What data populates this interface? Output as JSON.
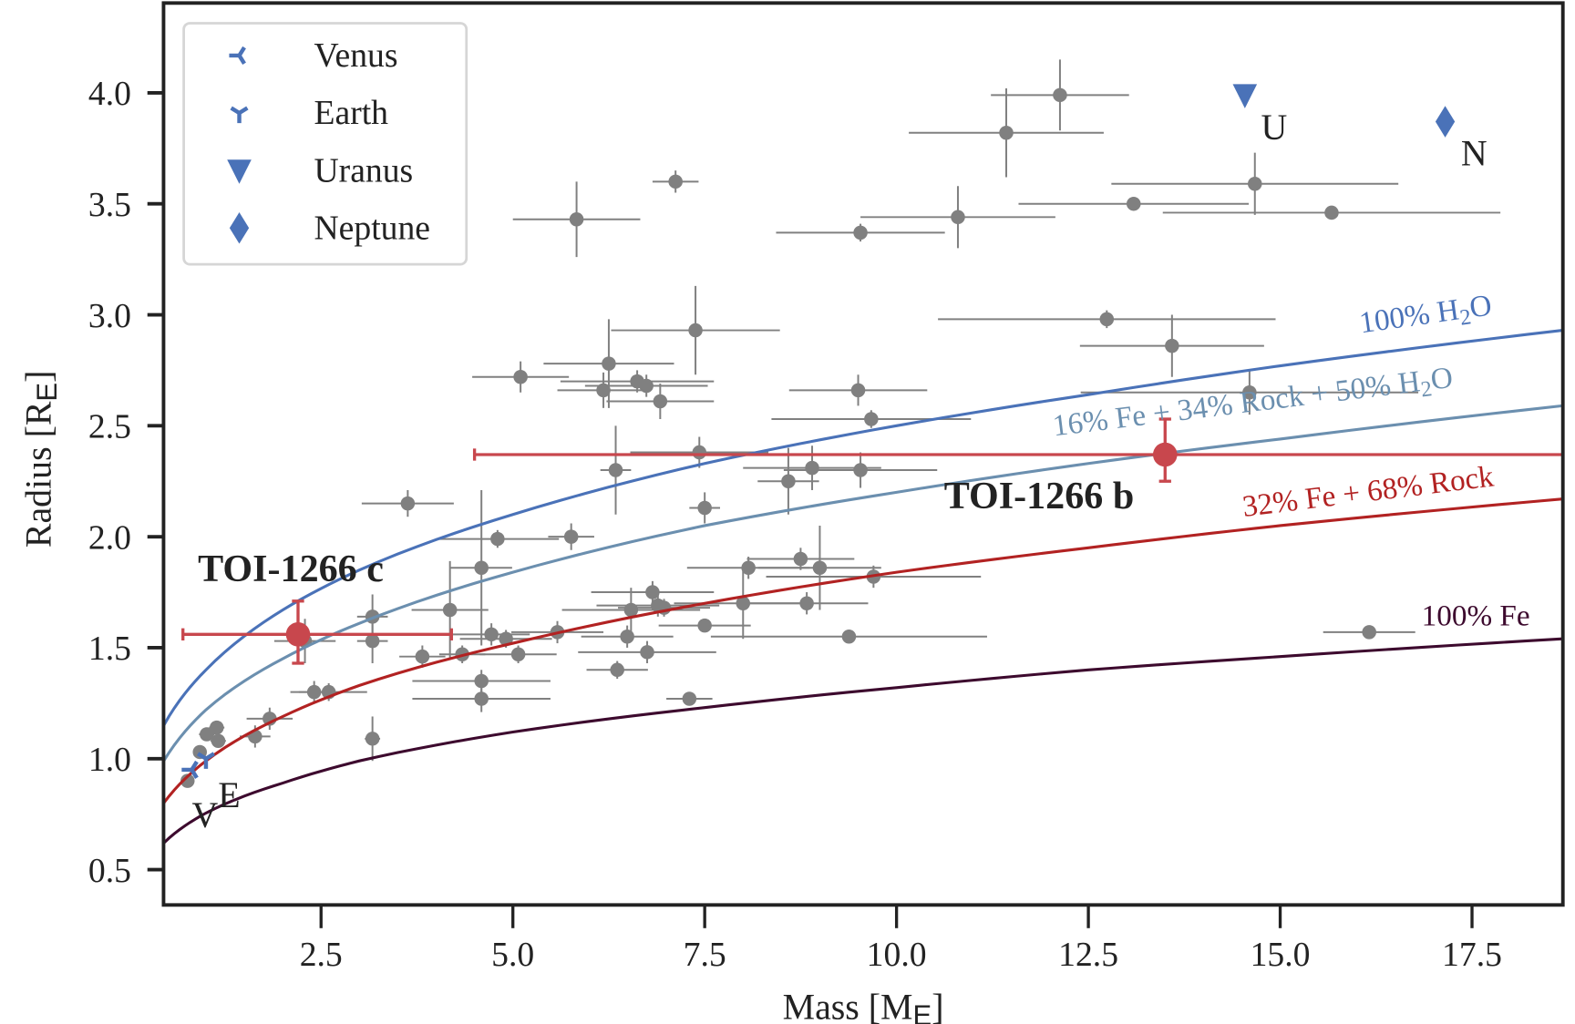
{
  "chart_data": {
    "type": "scatter",
    "title": "",
    "xlabel": "Mass [M",
    "xlabel_sub": "E",
    "xlabel_end": "]",
    "ylabel": "Radius [R",
    "ylabel_sub": "E",
    "ylabel_end": "]",
    "xlim": [
      0.45,
      18.68
    ],
    "ylim": [
      0.34,
      4.4
    ],
    "xticks": [
      "2.5",
      "5.0",
      "7.5",
      "10.0",
      "12.5",
      "15.0",
      "17.5"
    ],
    "yticks": [
      "0.5",
      "1.0",
      "1.5",
      "2.0",
      "2.5",
      "3.0",
      "3.5",
      "4.0"
    ],
    "grid": false,
    "legend_placement": "top-left",
    "legend": [
      {
        "label": "Venus",
        "marker": "tri-left"
      },
      {
        "label": "Earth",
        "marker": "tri-down"
      },
      {
        "label": "Uranus",
        "marker": "triangle-down"
      },
      {
        "label": "Neptune",
        "marker": "diamond"
      }
    ],
    "colors": {
      "planets": "#4a72b8",
      "exoplanets": "#808080",
      "toi": "#c8474d",
      "h2o": "#4a72b8",
      "mix": "#6b8faf",
      "rock": "#b22222",
      "fe": "#3d0a2e"
    },
    "solar_system": [
      {
        "name": "Venus",
        "label": "V",
        "mass": 0.815,
        "radius": 0.95,
        "marker": "tri-left"
      },
      {
        "name": "Earth",
        "label": "E",
        "mass": 1.0,
        "radius": 1.0,
        "marker": "tri-down"
      },
      {
        "name": "Uranus",
        "label": "U",
        "mass": 14.54,
        "radius": 3.99,
        "marker": "triangle-down"
      },
      {
        "name": "Neptune",
        "label": "N",
        "mass": 17.15,
        "radius": 3.87,
        "marker": "diamond"
      }
    ],
    "toi": [
      {
        "label": "TOI-1266 b",
        "mass": 13.5,
        "mass_err": [
          9.0,
          11.0
        ],
        "radius": 2.37,
        "radius_err": [
          0.12,
          0.16
        ]
      },
      {
        "label": "TOI-1266 c",
        "mass": 2.2,
        "mass_err": [
          1.5,
          2.0
        ],
        "radius": 1.56,
        "radius_err": [
          0.13,
          0.15
        ]
      }
    ],
    "curves": [
      {
        "label": "100% H",
        "sub": "2",
        "tail": "O",
        "color": "#4a72b8",
        "x": [
          0.45,
          1,
          2,
          3,
          5,
          7.5,
          10,
          12.5,
          15,
          18.68
        ],
        "y": [
          1.15,
          1.4,
          1.67,
          1.85,
          2.1,
          2.33,
          2.5,
          2.64,
          2.77,
          2.93
        ]
      },
      {
        "label": "16% Fe + 34% Rock + 50% H",
        "sub": "2",
        "tail": "O",
        "color": "#6b8faf",
        "x": [
          0.45,
          1,
          2,
          3,
          5,
          7.5,
          10,
          12.5,
          15,
          18.68
        ],
        "y": [
          0.99,
          1.22,
          1.45,
          1.61,
          1.84,
          2.05,
          2.2,
          2.33,
          2.44,
          2.59
        ]
      },
      {
        "label": "32% Fe + 68% Rock",
        "sub": "",
        "tail": "",
        "color": "#b22222",
        "x": [
          0.45,
          1,
          2,
          3,
          5,
          7.5,
          10,
          12.5,
          15,
          18.68
        ],
        "y": [
          0.8,
          0.99,
          1.19,
          1.33,
          1.52,
          1.7,
          1.84,
          1.95,
          2.05,
          2.17
        ]
      },
      {
        "label": "100% Fe",
        "sub": "",
        "tail": "",
        "color": "#3d0a2e",
        "x": [
          0.45,
          1,
          2,
          3,
          5,
          7.5,
          10,
          12.5,
          15,
          18.68
        ],
        "y": [
          0.62,
          0.755,
          0.89,
          0.99,
          1.12,
          1.23,
          1.32,
          1.4,
          1.46,
          1.54
        ]
      }
    ],
    "exoplanets": [
      [
        12.13,
        3.99,
        0.9,
        0.16
      ],
      [
        11.43,
        3.82,
        1.27,
        0.2
      ],
      [
        7.12,
        3.6,
        0.3,
        0.05
      ],
      [
        5.83,
        3.43,
        0.83,
        0.17
      ],
      [
        9.53,
        3.37,
        1.1,
        0.04
      ],
      [
        10.8,
        3.44,
        1.27,
        0.14
      ],
      [
        13.09,
        3.5,
        1.5,
        0.02
      ],
      [
        14.67,
        3.59,
        1.87,
        0.14
      ],
      [
        15.67,
        3.46,
        2.2,
        0.03
      ],
      [
        7.38,
        2.93,
        1.1,
        0.2
      ],
      [
        12.74,
        2.98,
        2.2,
        0.04
      ],
      [
        13.59,
        2.86,
        1.2,
        0.14
      ],
      [
        5.1,
        2.72,
        0.63,
        0.07
      ],
      [
        6.25,
        2.78,
        0.85,
        0.2
      ],
      [
        6.18,
        2.66,
        0.6,
        0.08
      ],
      [
        6.62,
        2.7,
        1.0,
        0.05
      ],
      [
        6.74,
        2.68,
        0.8,
        0.05
      ],
      [
        6.92,
        2.61,
        0.7,
        0.08
      ],
      [
        9.5,
        2.66,
        0.9,
        0.07
      ],
      [
        14.6,
        2.65,
        2.2,
        0.1
      ],
      [
        9.67,
        2.53,
        1.3,
        0.04
      ],
      [
        6.34,
        2.3,
        0.2,
        0.2
      ],
      [
        7.43,
        2.38,
        0.9,
        0.07
      ],
      [
        7.5,
        2.13,
        0.2,
        0.07
      ],
      [
        8.59,
        2.25,
        0.4,
        0.15
      ],
      [
        8.9,
        2.31,
        0.9,
        0.1
      ],
      [
        9.53,
        2.3,
        1.0,
        0.08
      ],
      [
        3.63,
        2.15,
        0.6,
        0.06
      ],
      [
        4.8,
        1.99,
        0.8,
        0.04
      ],
      [
        5.76,
        2.0,
        0.3,
        0.06
      ],
      [
        4.59,
        1.86,
        0.4,
        0.35
      ],
      [
        4.18,
        1.67,
        0.5,
        0.22
      ],
      [
        3.17,
        1.64,
        0.2,
        0.1
      ],
      [
        3.17,
        1.53,
        0.2,
        0.1
      ],
      [
        3.82,
        1.46,
        0.3,
        0.05
      ],
      [
        4.34,
        1.47,
        0.3,
        0.04
      ],
      [
        4.72,
        1.56,
        0.5,
        0.05
      ],
      [
        4.91,
        1.54,
        0.6,
        0.04
      ],
      [
        5.07,
        1.47,
        0.5,
        0.04
      ],
      [
        5.58,
        1.57,
        0.6,
        0.05
      ],
      [
        4.59,
        1.35,
        0.9,
        0.05
      ],
      [
        4.59,
        1.27,
        0.9,
        0.06
      ],
      [
        6.36,
        1.4,
        0.4,
        0.04
      ],
      [
        6.49,
        1.55,
        0.6,
        0.05
      ],
      [
        6.54,
        1.67,
        0.9,
        0.1
      ],
      [
        6.82,
        1.75,
        0.8,
        0.05
      ],
      [
        6.89,
        1.69,
        0.8,
        0.05
      ],
      [
        6.97,
        1.68,
        0.6,
        0.04
      ],
      [
        6.75,
        1.48,
        0.9,
        0.05
      ],
      [
        7.5,
        1.6,
        0.6,
        0.03
      ],
      [
        7.3,
        1.27,
        0.3,
        0.02
      ],
      [
        8.07,
        1.86,
        0.8,
        0.05
      ],
      [
        8.0,
        1.7,
        0.9,
        0.16
      ],
      [
        8.75,
        1.9,
        0.7,
        0.05
      ],
      [
        9.0,
        1.86,
        0.8,
        0.19
      ],
      [
        8.83,
        1.7,
        0.8,
        0.05
      ],
      [
        9.7,
        1.82,
        1.4,
        0.05
      ],
      [
        9.38,
        1.55,
        1.8,
        0.03
      ],
      [
        16.16,
        1.57,
        0.6,
        0.02
      ],
      [
        2.41,
        1.3,
        0.2,
        0.05
      ],
      [
        2.6,
        1.3,
        0.5,
        0.04
      ],
      [
        3.17,
        1.09,
        0.1,
        0.1
      ],
      [
        1.83,
        1.18,
        0.3,
        0.05
      ],
      [
        1.64,
        1.1,
        0.2,
        0.05
      ],
      [
        1.14,
        1.14,
        0.1,
        0.03
      ],
      [
        1.01,
        1.11,
        0.1,
        0.03
      ],
      [
        1.16,
        1.08,
        0.1,
        0.03
      ],
      [
        0.92,
        1.03,
        0.05,
        0.02
      ],
      [
        0.76,
        0.9,
        0.05,
        0.02
      ],
      [
        2.29,
        1.53,
        0.4,
        0.1
      ]
    ]
  }
}
